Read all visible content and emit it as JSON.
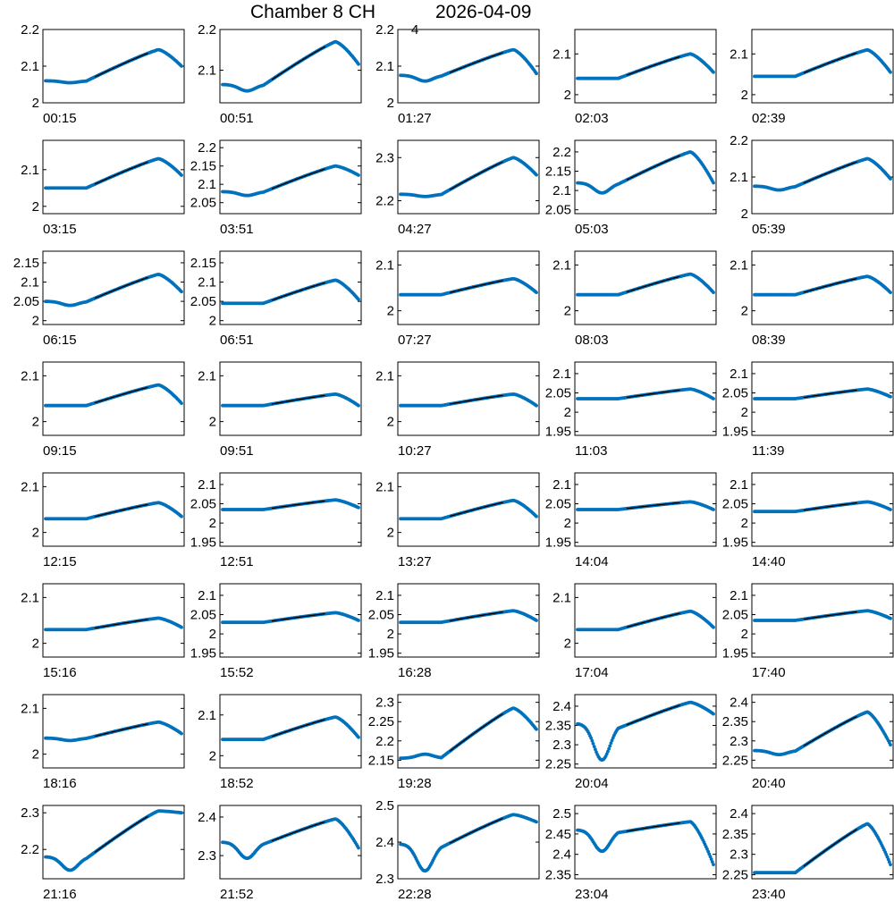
{
  "title_main": "Chamber 8 CH",
  "title_sub": "4",
  "title_date": "2026-04-09",
  "colors": {
    "points": "#0072BD",
    "fit": "#000000",
    "axis": "#000000"
  },
  "chart_data": [
    {
      "type": "scatter",
      "label": "00:15",
      "yticks": [
        2,
        2.1,
        2.2
      ],
      "ylim": [
        2,
        2.2
      ],
      "base": 2.06,
      "dip": 2.055,
      "peak": 2.145,
      "end": 2.1
    },
    {
      "type": "scatter",
      "label": "00:51",
      "yticks": [
        2.1,
        2.2
      ],
      "ylim": [
        2.02,
        2.2
      ],
      "base": 2.065,
      "dip": 2.05,
      "peak": 2.17,
      "end": 2.115
    },
    {
      "type": "scatter",
      "label": "01:27",
      "yticks": [
        2,
        2.1,
        2.2
      ],
      "ylim": [
        2,
        2.2
      ],
      "base": 2.075,
      "dip": 2.06,
      "peak": 2.145,
      "end": 2.08
    },
    {
      "type": "scatter",
      "label": "02:03",
      "yticks": [
        2,
        2.1
      ],
      "ylim": [
        1.98,
        2.16
      ],
      "base": 2.04,
      "dip": 2.04,
      "peak": 2.1,
      "end": 2.055
    },
    {
      "type": "scatter",
      "label": "02:39",
      "yticks": [
        2,
        2.1
      ],
      "ylim": [
        1.98,
        2.16
      ],
      "base": 2.045,
      "dip": 2.045,
      "peak": 2.11,
      "end": 2.055
    },
    {
      "type": "scatter",
      "label": "03:15",
      "yticks": [
        2,
        2.1
      ],
      "ylim": [
        1.98,
        2.18
      ],
      "base": 2.05,
      "dip": 2.05,
      "peak": 2.13,
      "end": 2.085
    },
    {
      "type": "scatter",
      "label": "03:51",
      "yticks": [
        2.05,
        2.1,
        2.15,
        2.2
      ],
      "ylim": [
        2.02,
        2.22
      ],
      "base": 2.08,
      "dip": 2.07,
      "peak": 2.15,
      "end": 2.125
    },
    {
      "type": "scatter",
      "label": "04:27",
      "yticks": [
        2.2,
        2.3
      ],
      "ylim": [
        2.17,
        2.34
      ],
      "base": 2.215,
      "dip": 2.21,
      "peak": 2.3,
      "end": 2.26
    },
    {
      "type": "scatter",
      "label": "05:03",
      "yticks": [
        2.05,
        2.1,
        2.15,
        2.2
      ],
      "ylim": [
        2.04,
        2.23
      ],
      "base": 2.12,
      "dip": 2.095,
      "peak": 2.2,
      "end": 2.12
    },
    {
      "type": "scatter",
      "label": "05:39",
      "yticks": [
        2,
        2.1,
        2.2
      ],
      "ylim": [
        2,
        2.2
      ],
      "base": 2.075,
      "dip": 2.065,
      "peak": 2.15,
      "end": 2.095
    },
    {
      "type": "scatter",
      "label": "06:15",
      "yticks": [
        2,
        2.05,
        2.1,
        2.15
      ],
      "ylim": [
        1.99,
        2.18
      ],
      "base": 2.05,
      "dip": 2.04,
      "peak": 2.12,
      "end": 2.075
    },
    {
      "type": "scatter",
      "label": "06:51",
      "yticks": [
        2,
        2.05,
        2.1,
        2.15
      ],
      "ylim": [
        1.99,
        2.18
      ],
      "base": 2.045,
      "dip": 2.045,
      "peak": 2.105,
      "end": 2.055
    },
    {
      "type": "scatter",
      "label": "07:27",
      "yticks": [
        2,
        2.1
      ],
      "ylim": [
        1.97,
        2.13
      ],
      "base": 2.035,
      "dip": 2.035,
      "peak": 2.07,
      "end": 2.04
    },
    {
      "type": "scatter",
      "label": "08:03",
      "yticks": [
        2,
        2.1
      ],
      "ylim": [
        1.97,
        2.13
      ],
      "base": 2.035,
      "dip": 2.035,
      "peak": 2.08,
      "end": 2.04
    },
    {
      "type": "scatter",
      "label": "08:39",
      "yticks": [
        2,
        2.1
      ],
      "ylim": [
        1.97,
        2.13
      ],
      "base": 2.035,
      "dip": 2.035,
      "peak": 2.075,
      "end": 2.04
    },
    {
      "type": "scatter",
      "label": "09:15",
      "yticks": [
        2,
        2.1
      ],
      "ylim": [
        1.97,
        2.13
      ],
      "base": 2.035,
      "dip": 2.035,
      "peak": 2.08,
      "end": 2.04
    },
    {
      "type": "scatter",
      "label": "09:51",
      "yticks": [
        2,
        2.1
      ],
      "ylim": [
        1.97,
        2.13
      ],
      "base": 2.035,
      "dip": 2.035,
      "peak": 2.06,
      "end": 2.035
    },
    {
      "type": "scatter",
      "label": "10:27",
      "yticks": [
        2,
        2.1
      ],
      "ylim": [
        1.97,
        2.13
      ],
      "base": 2.035,
      "dip": 2.035,
      "peak": 2.06,
      "end": 2.035
    },
    {
      "type": "scatter",
      "label": "11:03",
      "yticks": [
        1.95,
        2,
        2.05,
        2.1
      ],
      "ylim": [
        1.94,
        2.13
      ],
      "base": 2.035,
      "dip": 2.035,
      "peak": 2.06,
      "end": 2.035
    },
    {
      "type": "scatter",
      "label": "11:39",
      "yticks": [
        1.95,
        2,
        2.05,
        2.1
      ],
      "ylim": [
        1.94,
        2.13
      ],
      "base": 2.035,
      "dip": 2.035,
      "peak": 2.06,
      "end": 2.04
    },
    {
      "type": "scatter",
      "label": "12:15",
      "yticks": [
        2,
        2.1
      ],
      "ylim": [
        1.97,
        2.13
      ],
      "base": 2.03,
      "dip": 2.03,
      "peak": 2.065,
      "end": 2.035
    },
    {
      "type": "scatter",
      "label": "12:51",
      "yticks": [
        1.95,
        2,
        2.05,
        2.1
      ],
      "ylim": [
        1.94,
        2.13
      ],
      "base": 2.035,
      "dip": 2.035,
      "peak": 2.06,
      "end": 2.04
    },
    {
      "type": "scatter",
      "label": "13:27",
      "yticks": [
        2,
        2.1
      ],
      "ylim": [
        1.97,
        2.13
      ],
      "base": 2.03,
      "dip": 2.03,
      "peak": 2.07,
      "end": 2.035
    },
    {
      "type": "scatter",
      "label": "14:04",
      "yticks": [
        1.95,
        2,
        2.05,
        2.1
      ],
      "ylim": [
        1.94,
        2.13
      ],
      "base": 2.035,
      "dip": 2.035,
      "peak": 2.055,
      "end": 2.035
    },
    {
      "type": "scatter",
      "label": "14:40",
      "yticks": [
        1.95,
        2,
        2.05,
        2.1
      ],
      "ylim": [
        1.94,
        2.13
      ],
      "base": 2.03,
      "dip": 2.03,
      "peak": 2.055,
      "end": 2.035
    },
    {
      "type": "scatter",
      "label": "15:16",
      "yticks": [
        2,
        2.1
      ],
      "ylim": [
        1.97,
        2.13
      ],
      "base": 2.03,
      "dip": 2.03,
      "peak": 2.055,
      "end": 2.035
    },
    {
      "type": "scatter",
      "label": "15:52",
      "yticks": [
        1.95,
        2,
        2.05,
        2.1
      ],
      "ylim": [
        1.94,
        2.13
      ],
      "base": 2.03,
      "dip": 2.03,
      "peak": 2.055,
      "end": 2.035
    },
    {
      "type": "scatter",
      "label": "16:28",
      "yticks": [
        1.95,
        2,
        2.05,
        2.1
      ],
      "ylim": [
        1.94,
        2.13
      ],
      "base": 2.03,
      "dip": 2.03,
      "peak": 2.06,
      "end": 2.035
    },
    {
      "type": "scatter",
      "label": "17:04",
      "yticks": [
        2,
        2.1
      ],
      "ylim": [
        1.97,
        2.13
      ],
      "base": 2.03,
      "dip": 2.03,
      "peak": 2.07,
      "end": 2.035
    },
    {
      "type": "scatter",
      "label": "17:40",
      "yticks": [
        1.95,
        2,
        2.05,
        2.1
      ],
      "ylim": [
        1.94,
        2.13
      ],
      "base": 2.035,
      "dip": 2.035,
      "peak": 2.06,
      "end": 2.04
    },
    {
      "type": "scatter",
      "label": "18:16",
      "yticks": [
        2,
        2.1
      ],
      "ylim": [
        1.97,
        2.13
      ],
      "base": 2.035,
      "dip": 2.03,
      "peak": 2.07,
      "end": 2.045
    },
    {
      "type": "scatter",
      "label": "18:52",
      "yticks": [
        2,
        2.1
      ],
      "ylim": [
        1.97,
        2.15
      ],
      "base": 2.04,
      "dip": 2.04,
      "peak": 2.095,
      "end": 2.045
    },
    {
      "type": "scatter",
      "label": "19:28",
      "yticks": [
        2.15,
        2.2,
        2.25,
        2.3
      ],
      "ylim": [
        2.13,
        2.32
      ],
      "base": 2.155,
      "dip": 2.165,
      "peak": 2.285,
      "end": 2.23
    },
    {
      "type": "scatter",
      "label": "20:04",
      "yticks": [
        2.25,
        2.3,
        2.35,
        2.4
      ],
      "ylim": [
        2.24,
        2.43
      ],
      "base": 2.355,
      "dip": 2.265,
      "peak": 2.41,
      "end": 2.38
    },
    {
      "type": "scatter",
      "label": "20:40",
      "yticks": [
        2.25,
        2.3,
        2.35,
        2.4
      ],
      "ylim": [
        2.23,
        2.42
      ],
      "base": 2.275,
      "dip": 2.265,
      "peak": 2.375,
      "end": 2.29
    },
    {
      "type": "scatter",
      "label": "21:16",
      "yticks": [
        2.2,
        2.3
      ],
      "ylim": [
        2.12,
        2.32
      ],
      "base": 2.18,
      "dip": 2.145,
      "peak": 2.305,
      "end": 2.3
    },
    {
      "type": "scatter",
      "label": "21:52",
      "yticks": [
        2.3,
        2.4
      ],
      "ylim": [
        2.24,
        2.43
      ],
      "base": 2.335,
      "dip": 2.295,
      "peak": 2.395,
      "end": 2.32
    },
    {
      "type": "scatter",
      "label": "22:28",
      "yticks": [
        2.3,
        2.4,
        2.5
      ],
      "ylim": [
        2.3,
        2.5
      ],
      "base": 2.395,
      "dip": 2.325,
      "peak": 2.475,
      "end": 2.455
    },
    {
      "type": "scatter",
      "label": "23:04",
      "yticks": [
        2.35,
        2.4,
        2.45,
        2.5
      ],
      "ylim": [
        2.34,
        2.52
      ],
      "base": 2.46,
      "dip": 2.41,
      "peak": 2.48,
      "end": 2.375
    },
    {
      "type": "scatter",
      "label": "23:40",
      "yticks": [
        2.25,
        2.3,
        2.35,
        2.4
      ],
      "ylim": [
        2.24,
        2.42
      ],
      "base": 2.255,
      "dip": 2.255,
      "peak": 2.375,
      "end": 2.275
    }
  ]
}
